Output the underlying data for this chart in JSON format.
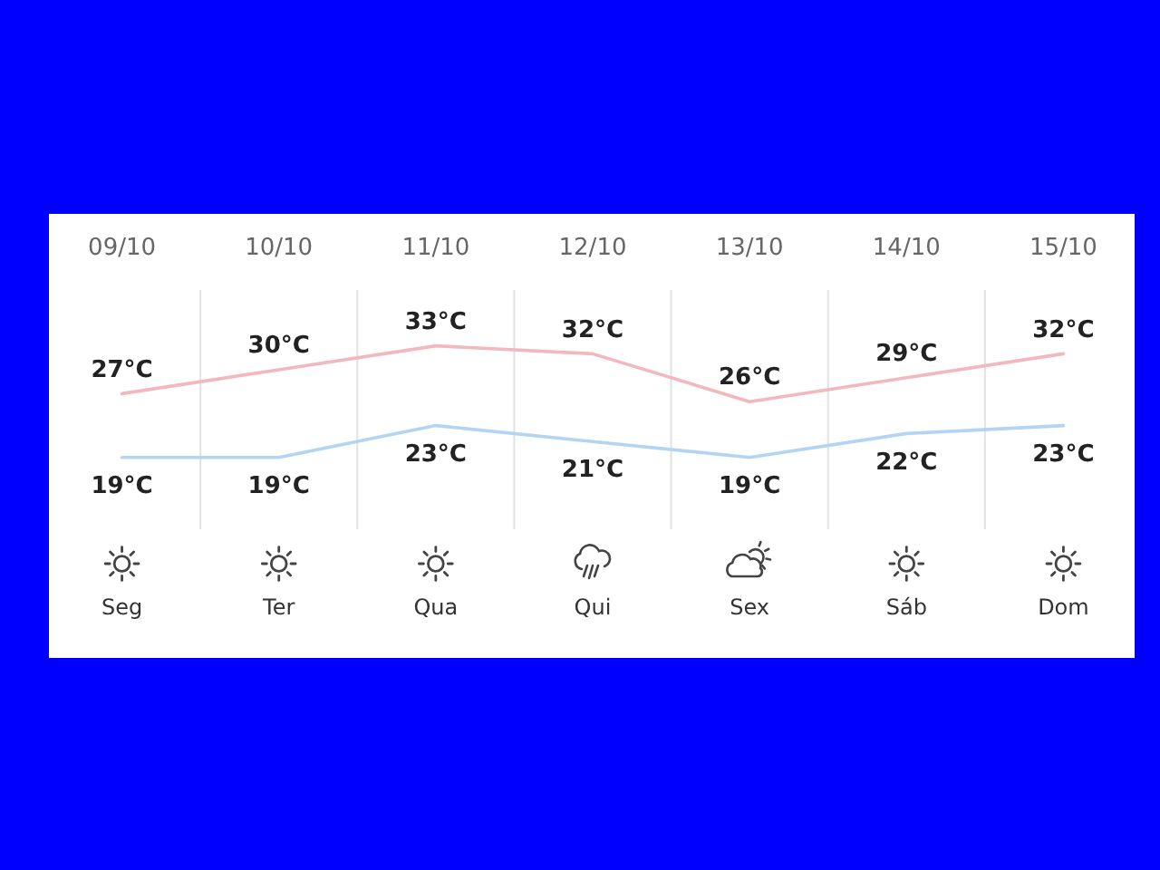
{
  "chart_data": {
    "type": "line",
    "categories": [
      "09/10",
      "10/10",
      "11/10",
      "12/10",
      "13/10",
      "14/10",
      "15/10"
    ],
    "series": [
      {
        "color": "#f2b8bd",
        "values": [
          27,
          30,
          33,
          32,
          26,
          29,
          32
        ],
        "value_labels": [
          "27°C",
          "30°C",
          "33°C",
          "32°C",
          "26°C",
          "29°C",
          "32°C"
        ]
      },
      {
        "color": "#b3d4f2",
        "values": [
          19,
          19,
          23,
          21,
          19,
          22,
          23
        ],
        "value_labels": [
          "19°C",
          "19°C",
          "23°C",
          "21°C",
          "19°C",
          "22°C",
          "23°C"
        ]
      }
    ],
    "ylim": [
      10,
      40
    ],
    "grid": "x",
    "tick_labels": "x",
    "annotations": [
      "Seg",
      "Ter",
      "Qua",
      "Qui",
      "Sex",
      "Sáb",
      "Dom"
    ]
  }
}
